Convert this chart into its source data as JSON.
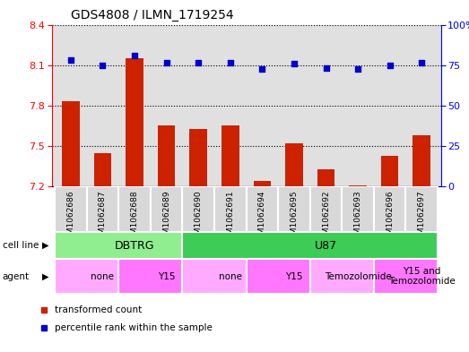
{
  "title": "GDS4808 / ILMN_1719254",
  "samples": [
    "GSM1062686",
    "GSM1062687",
    "GSM1062688",
    "GSM1062689",
    "GSM1062690",
    "GSM1062691",
    "GSM1062694",
    "GSM1062695",
    "GSM1062692",
    "GSM1062693",
    "GSM1062696",
    "GSM1062697"
  ],
  "red_values": [
    7.83,
    7.45,
    8.15,
    7.65,
    7.63,
    7.65,
    7.24,
    7.52,
    7.33,
    7.21,
    7.43,
    7.58
  ],
  "blue_values_left": [
    8.14,
    8.1,
    8.17,
    8.12,
    8.12,
    8.12,
    8.07,
    8.11,
    8.08,
    8.07,
    8.1,
    8.12
  ],
  "ylim_left": [
    7.2,
    8.4
  ],
  "ylim_right": [
    0,
    100
  ],
  "yticks_left": [
    7.2,
    7.5,
    7.8,
    8.1,
    8.4
  ],
  "yticks_right": [
    0,
    25,
    50,
    75,
    100
  ],
  "cell_line_groups": [
    {
      "label": "DBTRG",
      "start": 0,
      "end": 4,
      "color": "#90EE90"
    },
    {
      "label": "U87",
      "start": 4,
      "end": 12,
      "color": "#3DCC55"
    }
  ],
  "agent_groups": [
    {
      "label": "none",
      "start": 0,
      "end": 2,
      "color": "#FFAAFF"
    },
    {
      "label": "Y15",
      "start": 2,
      "end": 4,
      "color": "#FF77FF"
    },
    {
      "label": "none",
      "start": 4,
      "end": 6,
      "color": "#FFAAFF"
    },
    {
      "label": "Y15",
      "start": 6,
      "end": 8,
      "color": "#FF77FF"
    },
    {
      "label": "Temozolomide",
      "start": 8,
      "end": 10,
      "color": "#FFAAFF"
    },
    {
      "label": "Y15 and\nTemozolomide",
      "start": 10,
      "end": 12,
      "color": "#FF77FF"
    }
  ],
  "bar_color": "#CC2200",
  "dot_color": "#0000CC",
  "bar_bottom": 7.2,
  "plot_bg": "#E0E0E0",
  "legend_items": [
    {
      "label": "transformed count",
      "color": "#CC2200"
    },
    {
      "label": "percentile rank within the sample",
      "color": "#0000CC"
    }
  ]
}
